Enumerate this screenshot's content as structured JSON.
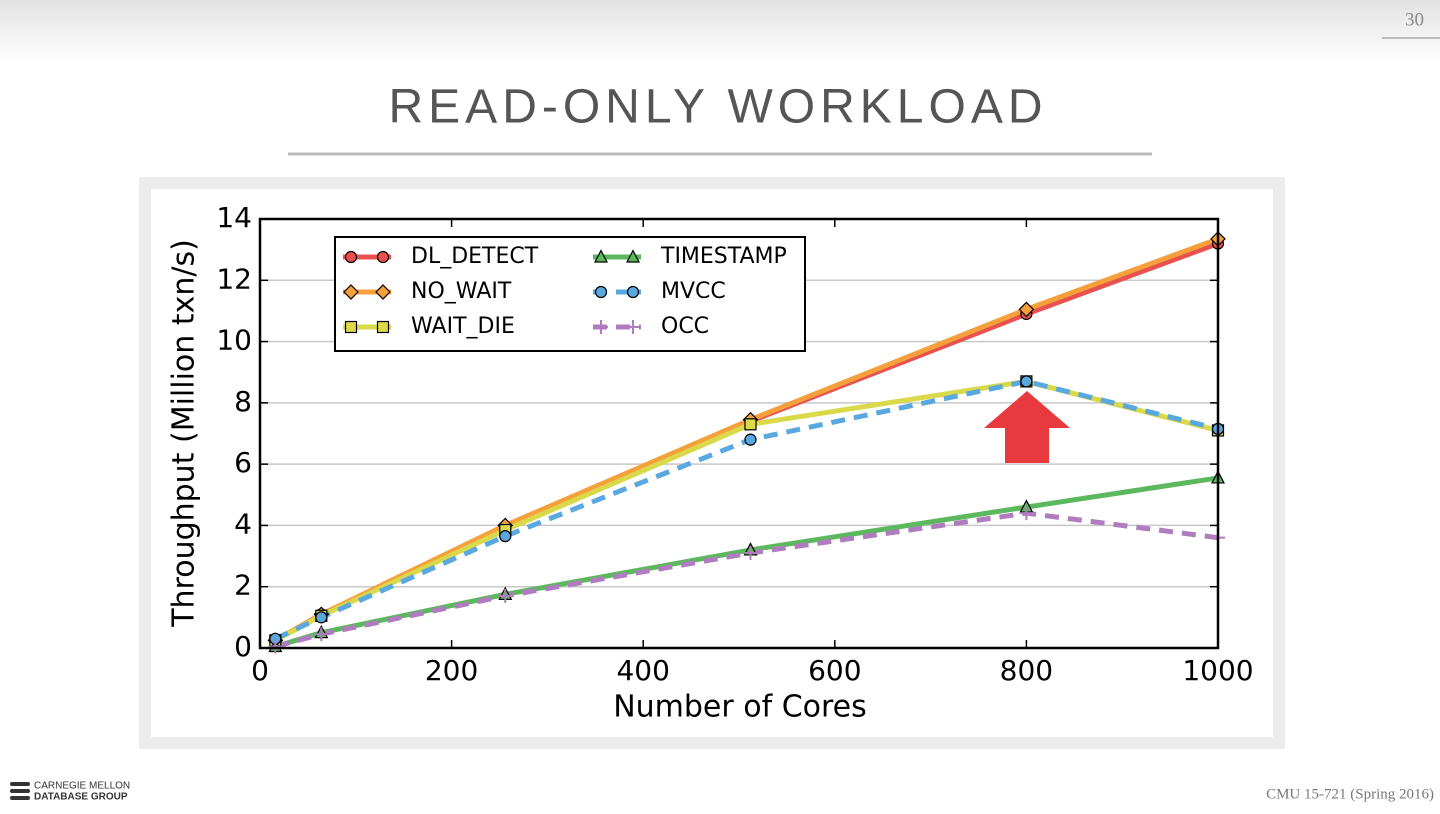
{
  "slide": {
    "title": "READ-ONLY WORKLOAD",
    "page_number": "30",
    "footer": "CMU 15-721 (Spring 2016)",
    "logo_line1": "CARNEGIE MELLON",
    "logo_line2": "DATABASE GROUP"
  },
  "chart_data": {
    "type": "line",
    "x_label": "Number of Cores",
    "y_label": "Throughput (Million txn/s)",
    "x": [
      16,
      64,
      256,
      512,
      800,
      1000
    ],
    "xlim": [
      0,
      1000
    ],
    "xticks": [
      0,
      200,
      400,
      600,
      800,
      1000
    ],
    "ylim": [
      0,
      14
    ],
    "yticks": [
      0,
      2,
      4,
      6,
      8,
      10,
      12,
      14
    ],
    "grid": true,
    "legend": "upper left",
    "series": [
      {
        "name": "DL_DETECT",
        "color": "#e8514f",
        "marker": "circle",
        "dashed": false,
        "values": [
          0.25,
          1.1,
          3.9,
          7.4,
          10.9,
          13.2
        ]
      },
      {
        "name": "NO_WAIT",
        "color": "#f5a03a",
        "marker": "diamond",
        "dashed": false,
        "values": [
          0.25,
          1.1,
          4.0,
          7.45,
          11.05,
          13.35
        ]
      },
      {
        "name": "WAIT_DIE",
        "color": "#d9d94a",
        "marker": "square",
        "dashed": false,
        "values": [
          0.25,
          1.05,
          3.85,
          7.3,
          8.7,
          7.1
        ]
      },
      {
        "name": "TIMESTAMP",
        "color": "#5cb85c",
        "marker": "triangle",
        "dashed": false,
        "values": [
          0.05,
          0.5,
          1.75,
          3.2,
          4.6,
          5.55
        ]
      },
      {
        "name": "MVCC",
        "color": "#5aa8e0",
        "marker": "circle",
        "dashed": true,
        "values": [
          0.3,
          1.0,
          3.65,
          6.8,
          8.7,
          7.15
        ]
      },
      {
        "name": "OCC",
        "color": "#b07cc0",
        "marker": "plus",
        "dashed": true,
        "values": [
          0.05,
          0.45,
          1.7,
          3.1,
          4.4,
          3.6
        ]
      }
    ]
  }
}
